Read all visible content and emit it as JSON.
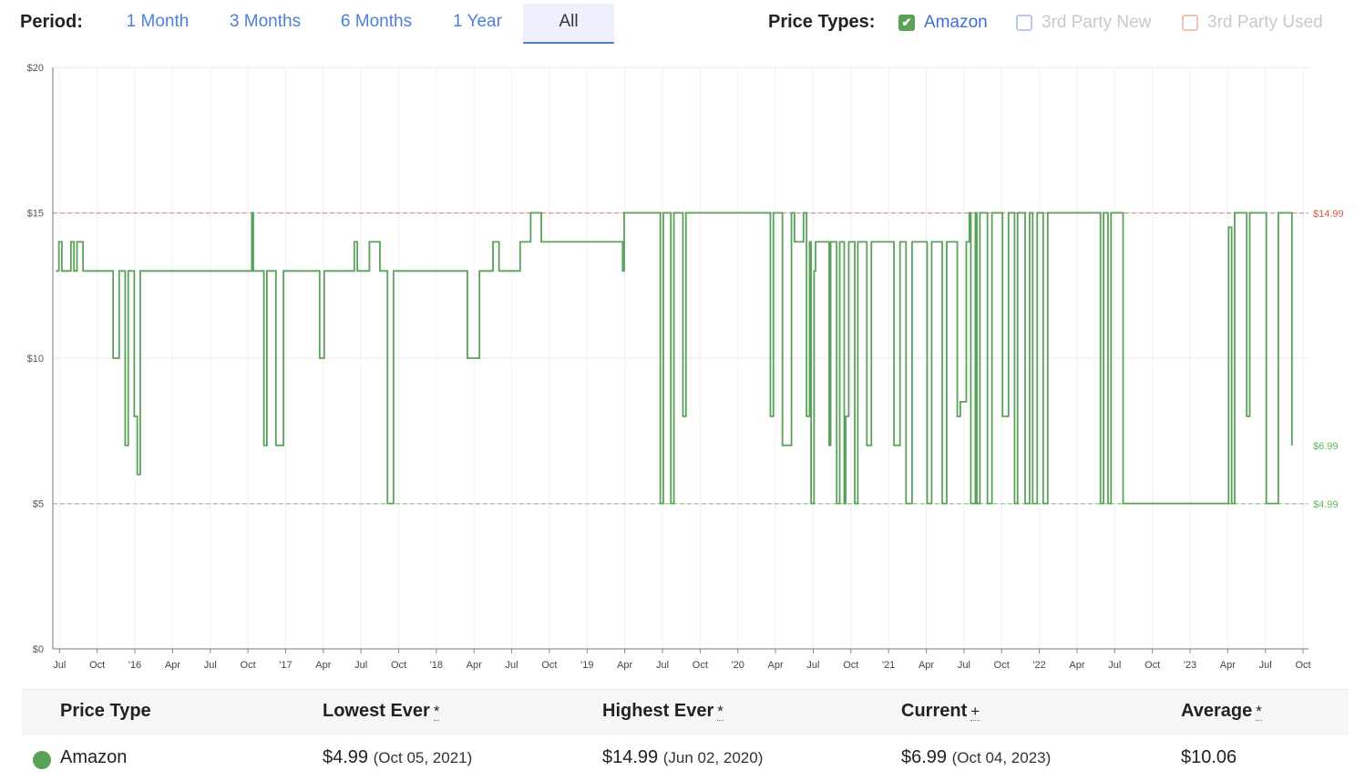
{
  "period": {
    "label": "Period:",
    "options": [
      "1 Month",
      "3 Months",
      "6 Months",
      "1 Year",
      "All"
    ],
    "selected": "All"
  },
  "price_types": {
    "label": "Price Types:",
    "items": [
      {
        "label": "Amazon",
        "checked": true,
        "color": "#5aa25a"
      },
      {
        "label": "3rd Party New",
        "checked": false,
        "color": "#b9c8f0"
      },
      {
        "label": "3rd Party Used",
        "checked": false,
        "color": "#f2c2b6"
      }
    ]
  },
  "chart_data": {
    "type": "line",
    "step": true,
    "y_ticks": [
      "$0",
      "$5",
      "$10",
      "$15",
      "$20"
    ],
    "ylim": [
      0,
      20
    ],
    "x_ticks": [
      "Jul",
      "Oct",
      "'16",
      "Apr",
      "Jul",
      "Oct",
      "'17",
      "Apr",
      "Jul",
      "Oct",
      "'18",
      "Apr",
      "Jul",
      "Oct",
      "'19",
      "Apr",
      "Jul",
      "Oct",
      "'20",
      "Apr",
      "Jul",
      "Oct",
      "'21",
      "Apr",
      "Jul",
      "Oct",
      "'22",
      "Apr",
      "Jul",
      "Oct",
      "'23",
      "Apr",
      "Jul",
      "Oct"
    ],
    "xlim": [
      2015.5,
      2023.83
    ],
    "reference_lines": [
      {
        "value": 14.99,
        "label": "$14.99",
        "color": "#d9534f"
      },
      {
        "value": 4.99,
        "label": "$4.99",
        "color": "#5cb85c"
      }
    ],
    "current_label": {
      "value": 6.99,
      "label": "$6.99",
      "color": "#5cb85c"
    },
    "grid": true,
    "series": [
      {
        "name": "Amazon",
        "color": "#5aa25a",
        "points": [
          [
            2015.52,
            13
          ],
          [
            2015.54,
            14
          ],
          [
            2015.56,
            13
          ],
          [
            2015.58,
            13
          ],
          [
            2015.62,
            14
          ],
          [
            2015.64,
            13
          ],
          [
            2015.66,
            14
          ],
          [
            2015.7,
            13
          ],
          [
            2015.9,
            10
          ],
          [
            2015.94,
            13
          ],
          [
            2015.98,
            7
          ],
          [
            2016.0,
            13
          ],
          [
            2016.04,
            8
          ],
          [
            2016.06,
            6
          ],
          [
            2016.08,
            13
          ],
          [
            2016.8,
            13
          ],
          [
            2016.82,
            15
          ],
          [
            2016.83,
            13
          ],
          [
            2016.9,
            7
          ],
          [
            2016.92,
            13
          ],
          [
            2016.98,
            7
          ],
          [
            2017.03,
            13
          ],
          [
            2017.27,
            10
          ],
          [
            2017.3,
            13
          ],
          [
            2017.5,
            14
          ],
          [
            2017.52,
            13
          ],
          [
            2017.6,
            14
          ],
          [
            2017.67,
            13
          ],
          [
            2017.72,
            5
          ],
          [
            2017.76,
            13
          ],
          [
            2018.25,
            10
          ],
          [
            2018.33,
            13
          ],
          [
            2018.42,
            14
          ],
          [
            2018.46,
            13
          ],
          [
            2018.6,
            14
          ],
          [
            2018.67,
            15
          ],
          [
            2018.74,
            14
          ],
          [
            2019.28,
            13
          ],
          [
            2019.29,
            15
          ],
          [
            2019.53,
            5
          ],
          [
            2019.55,
            15
          ],
          [
            2019.6,
            5
          ],
          [
            2019.62,
            15
          ],
          [
            2019.68,
            8
          ],
          [
            2019.7,
            15
          ],
          [
            2020.26,
            8
          ],
          [
            2020.28,
            15
          ],
          [
            2020.34,
            7
          ],
          [
            2020.4,
            15
          ],
          [
            2020.42,
            14
          ],
          [
            2020.48,
            15
          ],
          [
            2020.5,
            8
          ],
          [
            2020.52,
            14
          ],
          [
            2020.53,
            5
          ],
          [
            2020.55,
            13
          ],
          [
            2020.56,
            14
          ],
          [
            2020.65,
            7
          ],
          [
            2020.66,
            14
          ],
          [
            2020.7,
            5
          ],
          [
            2020.72,
            14
          ],
          [
            2020.75,
            5
          ],
          [
            2020.76,
            8
          ],
          [
            2020.78,
            14
          ],
          [
            2020.82,
            5
          ],
          [
            2020.84,
            14
          ],
          [
            2020.9,
            7
          ],
          [
            2020.93,
            14
          ],
          [
            2021.05,
            14
          ],
          [
            2021.08,
            7
          ],
          [
            2021.12,
            14
          ],
          [
            2021.16,
            5
          ],
          [
            2021.2,
            14
          ],
          [
            2021.3,
            5
          ],
          [
            2021.33,
            14
          ],
          [
            2021.4,
            5
          ],
          [
            2021.43,
            14
          ],
          [
            2021.5,
            8
          ],
          [
            2021.52,
            8.5
          ],
          [
            2021.56,
            14
          ],
          [
            2021.58,
            15
          ],
          [
            2021.59,
            5
          ],
          [
            2021.62,
            15
          ],
          [
            2021.63,
            5
          ],
          [
            2021.65,
            15
          ],
          [
            2021.7,
            5
          ],
          [
            2021.73,
            15
          ],
          [
            2021.8,
            8
          ],
          [
            2021.84,
            15
          ],
          [
            2021.88,
            5
          ],
          [
            2021.9,
            15
          ],
          [
            2021.95,
            5
          ],
          [
            2021.98,
            15
          ],
          [
            2022.0,
            5
          ],
          [
            2022.03,
            15
          ],
          [
            2022.07,
            5
          ],
          [
            2022.1,
            15
          ],
          [
            2022.45,
            5
          ],
          [
            2022.47,
            15
          ],
          [
            2022.5,
            5
          ],
          [
            2022.52,
            15
          ],
          [
            2022.6,
            5
          ],
          [
            2023.28,
            5
          ],
          [
            2023.3,
            14.5
          ],
          [
            2023.32,
            5
          ],
          [
            2023.34,
            15
          ],
          [
            2023.42,
            8
          ],
          [
            2023.44,
            15
          ],
          [
            2023.55,
            5
          ],
          [
            2023.63,
            15
          ],
          [
            2023.72,
            7
          ]
        ]
      }
    ]
  },
  "table": {
    "headers": {
      "type": "Price Type",
      "lowest": "Lowest Ever",
      "highest": "Highest Ever",
      "current": "Current",
      "average": "Average"
    },
    "marks": {
      "lowest": "*",
      "highest": "*",
      "current": "+",
      "average": "*"
    },
    "rows": [
      {
        "type": "Amazon",
        "lowest_price": "$4.99",
        "lowest_date": "(Oct 05, 2021)",
        "highest_price": "$14.99",
        "highest_date": "(Jun 02, 2020)",
        "current_price": "$6.99",
        "current_date": "(Oct 04, 2023)",
        "average": "$10.06",
        "color": "#5aa25a"
      }
    ]
  }
}
